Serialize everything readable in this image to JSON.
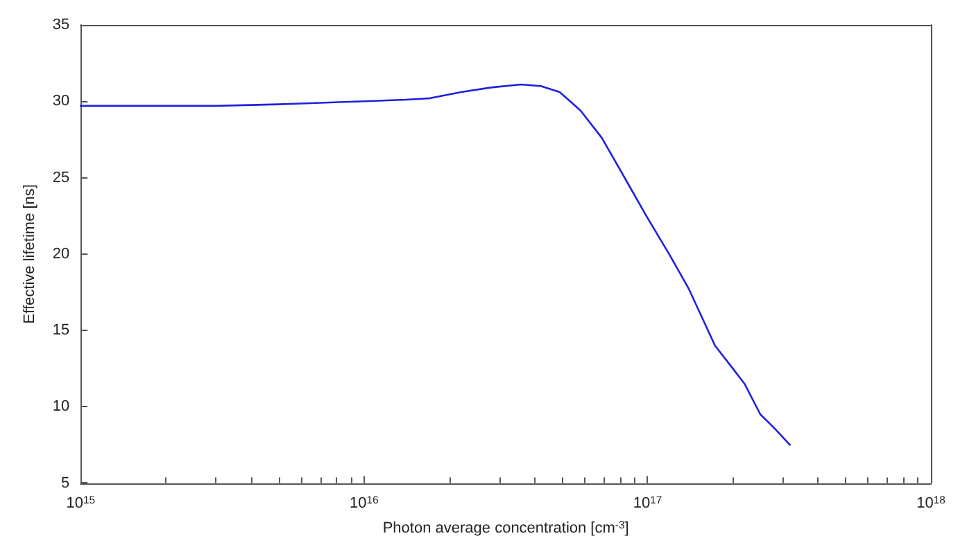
{
  "chart_data": {
    "type": "line",
    "xlabel": "Photon average concentration [cm$^{-3}$]",
    "ylabel": "Effective lifetime [ns]",
    "log": "x",
    "grid": false,
    "marker": "none",
    "line_style": "solid",
    "xlim": [
      1000000000000000.0,
      1e+18
    ],
    "ylim": [
      5,
      35
    ],
    "xticks": [
      {
        "value": 1000000000000000.0,
        "label": "10$^{15}$"
      },
      {
        "value": 1e+16,
        "label": "10$^{16}$"
      },
      {
        "value": 1e+17,
        "label": "10$^{17}$"
      },
      {
        "value": 1e+18,
        "label": "10$^{18}$"
      }
    ],
    "yticks": [
      5,
      10,
      15,
      20,
      25,
      30,
      35
    ],
    "series": [
      {
        "color": "#2020e0",
        "x": [
          1000000000000000.0,
          2000000000000000.0,
          3000000000000000.0,
          5000000000000000.0,
          7000000000000000.0,
          1e+16,
          1.4e+16,
          1.71e+16,
          2.2e+16,
          2.8e+16,
          3.57e+16,
          4.2e+16,
          4.9e+16,
          5.8e+16,
          6.9e+16,
          8.3e+16,
          9.9e+16,
          1.2e+17,
          1.4e+17,
          1.73e+17,
          2e+17,
          2.2e+17,
          2.5e+17,
          2.8e+17,
          3.18e+17
        ],
        "values": [
          29.7,
          29.7,
          29.7,
          29.8,
          29.9,
          30,
          30.1,
          30.2,
          30.6,
          30.9,
          31.1,
          31,
          30.6,
          29.4,
          27.6,
          25,
          22.5,
          19.9,
          17.7,
          14,
          12.5,
          11.5,
          9.5,
          8.6,
          7.5
        ]
      }
    ]
  }
}
